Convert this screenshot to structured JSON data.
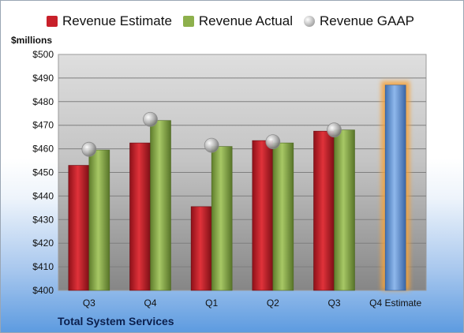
{
  "chart_data": {
    "type": "bar",
    "title": "Total System Services",
    "ylabel": "$millions",
    "ylim": [
      400,
      500
    ],
    "ytick_step": 10,
    "ytick_labels": [
      "$400",
      "$410",
      "$420",
      "$430",
      "$440",
      "$450",
      "$460",
      "$470",
      "$480",
      "$490",
      "$500"
    ],
    "grid": true,
    "legend_position": "top",
    "categories": [
      "Q3",
      "Q4",
      "Q1",
      "Q2",
      "Q3",
      "Q4 Estimate"
    ],
    "series": [
      {
        "name": "Revenue Estimate",
        "kind": "bar",
        "color": "#c8202a",
        "values": [
          453,
          462.5,
          435.5,
          463.5,
          467.5,
          null
        ]
      },
      {
        "name": "Revenue Actual",
        "kind": "bar",
        "color": "#8db04c",
        "values": [
          459.5,
          472,
          461,
          462.5,
          468,
          null
        ]
      },
      {
        "name": "Revenue GAAP",
        "kind": "marker",
        "color": "#b5b5b5",
        "values": [
          459.8,
          472.5,
          461.5,
          463,
          468,
          null
        ]
      },
      {
        "name": "Q4 Estimate",
        "kind": "bar",
        "color": "#6f9edb",
        "highlight": "#f5a33b",
        "values": [
          null,
          null,
          null,
          null,
          null,
          487
        ]
      }
    ]
  },
  "legend": {
    "estimate": "Revenue Estimate",
    "actual": "Revenue Actual",
    "gaap": "Revenue GAAP"
  }
}
